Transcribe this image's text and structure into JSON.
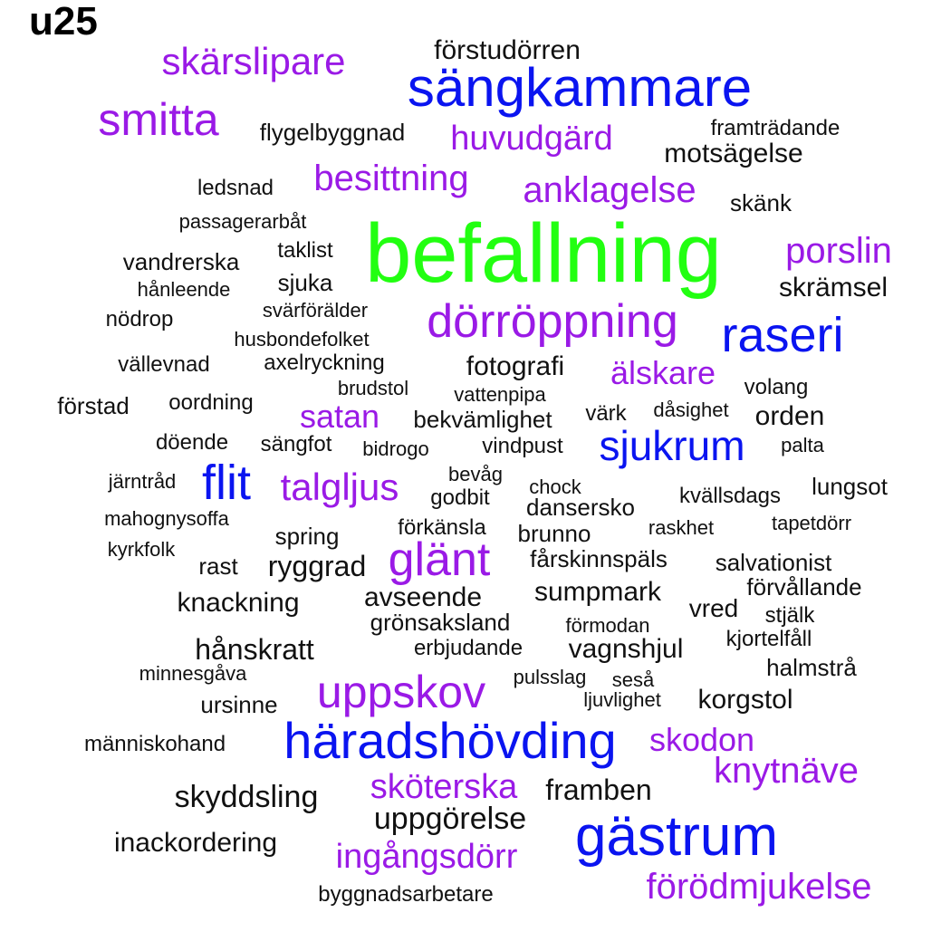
{
  "title": "u25",
  "colors": {
    "green": "#22ff11",
    "blue": "#0a14f0",
    "purple": "#9a1ae6",
    "black": "#111111"
  },
  "words": [
    {
      "text": "befallning",
      "color": "green"
    },
    {
      "text": "sängkammare",
      "color": "blue"
    },
    {
      "text": "raseri",
      "color": "blue"
    },
    {
      "text": "flit",
      "color": "blue"
    },
    {
      "text": "sjukrum",
      "color": "blue"
    },
    {
      "text": "häradshövding",
      "color": "blue"
    },
    {
      "text": "gästrum",
      "color": "blue"
    },
    {
      "text": "skärslipare",
      "color": "purple"
    },
    {
      "text": "smitta",
      "color": "purple"
    },
    {
      "text": "huvudgärd",
      "color": "purple"
    },
    {
      "text": "besittning",
      "color": "purple"
    },
    {
      "text": "anklagelse",
      "color": "purple"
    },
    {
      "text": "porslin",
      "color": "purple"
    },
    {
      "text": "dörröppning",
      "color": "purple"
    },
    {
      "text": "älskare",
      "color": "purple"
    },
    {
      "text": "satan",
      "color": "purple"
    },
    {
      "text": "talgljus",
      "color": "purple"
    },
    {
      "text": "glänt",
      "color": "purple"
    },
    {
      "text": "uppskov",
      "color": "purple"
    },
    {
      "text": "skodon",
      "color": "purple"
    },
    {
      "text": "knytnäve",
      "color": "purple"
    },
    {
      "text": "sköterska",
      "color": "purple"
    },
    {
      "text": "ingångsdörr",
      "color": "purple"
    },
    {
      "text": "förödmjukelse",
      "color": "purple"
    },
    {
      "text": "förstudörren",
      "color": "black"
    },
    {
      "text": "flygelbyggnad",
      "color": "black"
    },
    {
      "text": "framträdande",
      "color": "black"
    },
    {
      "text": "motsägelse",
      "color": "black"
    },
    {
      "text": "ledsnad",
      "color": "black"
    },
    {
      "text": "skänk",
      "color": "black"
    },
    {
      "text": "passagerarbåt",
      "color": "black"
    },
    {
      "text": "vandrerska",
      "color": "black"
    },
    {
      "text": "taklist",
      "color": "black"
    },
    {
      "text": "hånleende",
      "color": "black"
    },
    {
      "text": "sjuka",
      "color": "black"
    },
    {
      "text": "skrämsel",
      "color": "black"
    },
    {
      "text": "nödrop",
      "color": "black"
    },
    {
      "text": "svärförälder",
      "color": "black"
    },
    {
      "text": "husbondefolket",
      "color": "black"
    },
    {
      "text": "vällevnad",
      "color": "black"
    },
    {
      "text": "axelryckning",
      "color": "black"
    },
    {
      "text": "fotografi",
      "color": "black"
    },
    {
      "text": "brudstol",
      "color": "black"
    },
    {
      "text": "vattenpipa",
      "color": "black"
    },
    {
      "text": "volang",
      "color": "black"
    },
    {
      "text": "förstad",
      "color": "black"
    },
    {
      "text": "oordning",
      "color": "black"
    },
    {
      "text": "bekvämlighet",
      "color": "black"
    },
    {
      "text": "värk",
      "color": "black"
    },
    {
      "text": "dåsighet",
      "color": "black"
    },
    {
      "text": "orden",
      "color": "black"
    },
    {
      "text": "döende",
      "color": "black"
    },
    {
      "text": "sängfot",
      "color": "black"
    },
    {
      "text": "bidrogo",
      "color": "black"
    },
    {
      "text": "vindpust",
      "color": "black"
    },
    {
      "text": "palta",
      "color": "black"
    },
    {
      "text": "järntråd",
      "color": "black"
    },
    {
      "text": "bevåg",
      "color": "black"
    },
    {
      "text": "chock",
      "color": "black"
    },
    {
      "text": "godbit",
      "color": "black"
    },
    {
      "text": "dansersko",
      "color": "black"
    },
    {
      "text": "kvällsdags",
      "color": "black"
    },
    {
      "text": "lungsot",
      "color": "black"
    },
    {
      "text": "mahognysoffa",
      "color": "black"
    },
    {
      "text": "förkänsla",
      "color": "black"
    },
    {
      "text": "brunno",
      "color": "black"
    },
    {
      "text": "raskhet",
      "color": "black"
    },
    {
      "text": "tapetdörr",
      "color": "black"
    },
    {
      "text": "spring",
      "color": "black"
    },
    {
      "text": "kyrkfolk",
      "color": "black"
    },
    {
      "text": "rast",
      "color": "black"
    },
    {
      "text": "ryggrad",
      "color": "black"
    },
    {
      "text": "fårskinnspäls",
      "color": "black"
    },
    {
      "text": "salvationist",
      "color": "black"
    },
    {
      "text": "förvållande",
      "color": "black"
    },
    {
      "text": "knackning",
      "color": "black"
    },
    {
      "text": "avseende",
      "color": "black"
    },
    {
      "text": "sumpmark",
      "color": "black"
    },
    {
      "text": "vred",
      "color": "black"
    },
    {
      "text": "stjälk",
      "color": "black"
    },
    {
      "text": "grönsaksland",
      "color": "black"
    },
    {
      "text": "förmodan",
      "color": "black"
    },
    {
      "text": "kjortelfåll",
      "color": "black"
    },
    {
      "text": "hånskratt",
      "color": "black"
    },
    {
      "text": "erbjudande",
      "color": "black"
    },
    {
      "text": "vagnshjul",
      "color": "black"
    },
    {
      "text": "halmstrå",
      "color": "black"
    },
    {
      "text": "minnesgåva",
      "color": "black"
    },
    {
      "text": "pulsslag",
      "color": "black"
    },
    {
      "text": "seså",
      "color": "black"
    },
    {
      "text": "ursinne",
      "color": "black"
    },
    {
      "text": "ljuvlighet",
      "color": "black"
    },
    {
      "text": "korgstol",
      "color": "black"
    },
    {
      "text": "människohand",
      "color": "black"
    },
    {
      "text": "framben",
      "color": "black"
    },
    {
      "text": "skyddsling",
      "color": "black"
    },
    {
      "text": "uppgörelse",
      "color": "black"
    },
    {
      "text": "inackordering",
      "color": "black"
    },
    {
      "text": "byggnadsarbetare",
      "color": "black"
    }
  ]
}
